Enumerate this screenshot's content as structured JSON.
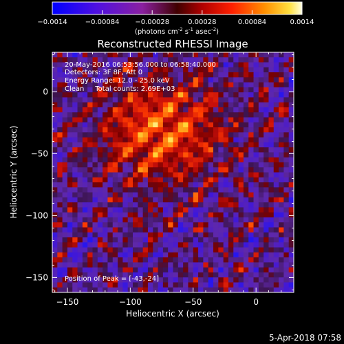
{
  "chart_data": {
    "type": "heatmap",
    "title": "Reconstructed RHESSI Image",
    "xlabel": "Heliocentric X (arcsec)",
    "ylabel": "Heliocentric Y (arcsec)",
    "xlim": [
      -162,
      30
    ],
    "ylim": [
      -162,
      32
    ],
    "x_ticks": [
      -150,
      -100,
      -50,
      0
    ],
    "y_ticks": [
      -150,
      -100,
      -50,
      0
    ],
    "colorbar": {
      "range": [
        -0.0014,
        0.0014
      ],
      "ticks": [
        "-0.0014",
        "-0.00084",
        "-0.00028",
        "0.00028",
        "0.00084",
        "0.0014"
      ],
      "unit_label": "(photons cm",
      "unit_exp1": "-2",
      "unit_mid": " s",
      "unit_exp2": "-1",
      "unit_mid2": " asec",
      "unit_exp3": "-2",
      "unit_end": ")",
      "colormap": "IDL red-temperature with blue-violet negatives"
    },
    "annotations": [
      "20-May-2016 06:53:56.000 to 06:58:40.000",
      "Detectors: 3F 8F, Att 0",
      "Energy Range: 12.0 - 25.0 keV",
      "Clean     Total counts: 2.69E+03"
    ],
    "peak_text": "Position of Peak = [-43,-24]",
    "peak": [
      -43,
      -24
    ],
    "grid": false
  },
  "footer": {
    "date": "5-Apr-2018 07:58"
  },
  "colors": {
    "background": "#000000",
    "text": "#ffffff",
    "negative_low": "#1010ff",
    "negative_mid": "#7a30c0",
    "positive_mid": "#d01010",
    "positive_high": "#ffff60"
  }
}
